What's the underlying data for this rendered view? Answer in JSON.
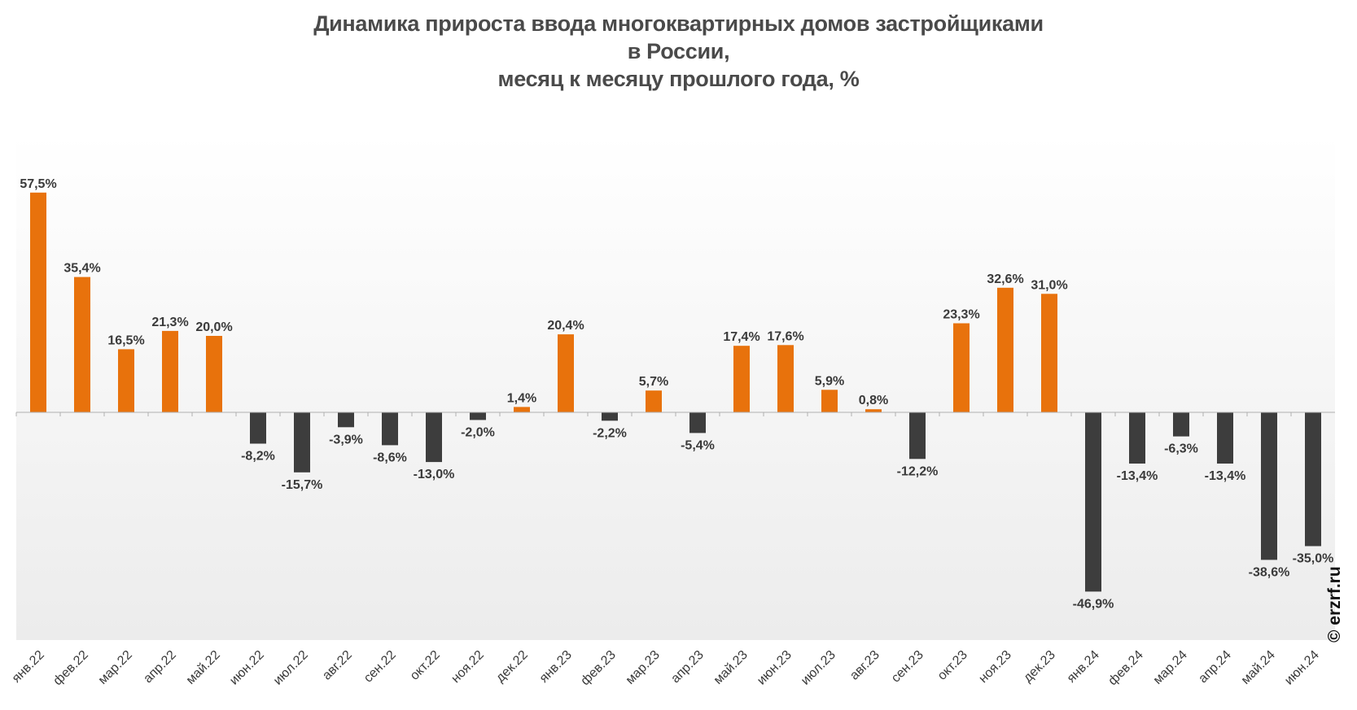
{
  "title_lines": [
    "Динамика прироста ввода многоквартирных домов застройщиками",
    "в России,",
    "месяц к месяцу прошлого года, %"
  ],
  "watermark": "© erzrf.ru",
  "colors": {
    "positive": "#e8720c",
    "negative": "#3d3d3d"
  },
  "chart_data": {
    "type": "bar",
    "title": "Динамика прироста ввода многоквартирных домов застройщиками в России, месяц к месяцу прошлого года, %",
    "xlabel": "",
    "ylabel": "",
    "ylim": [
      -50,
      60
    ],
    "grid": false,
    "legend": "none",
    "categories": [
      "янв.22",
      "фев.22",
      "мар.22",
      "апр.22",
      "май.22",
      "июн.22",
      "июл.22",
      "авг.22",
      "сен.22",
      "окт.22",
      "ноя.22",
      "дек.22",
      "янв.23",
      "фев.23",
      "мар.23",
      "апр.23",
      "май.23",
      "июн.23",
      "июл.23",
      "авг.23",
      "сен.23",
      "окт.23",
      "ноя.23",
      "дек.23",
      "янв.24",
      "фев.24",
      "мар.24",
      "апр.24",
      "май.24",
      "июн.24"
    ],
    "values": [
      57.5,
      35.4,
      16.5,
      21.3,
      20.0,
      -8.2,
      -15.7,
      -3.9,
      -8.6,
      -13.0,
      -2.0,
      1.4,
      20.4,
      -2.2,
      5.7,
      -5.4,
      17.4,
      17.6,
      5.9,
      0.8,
      -12.2,
      23.3,
      32.6,
      31.0,
      -46.9,
      -13.4,
      -6.3,
      -13.4,
      -38.6,
      -35.0
    ],
    "data_labels": [
      "57,5%",
      "35,4%",
      "16,5%",
      "21,3%",
      "20,0%",
      "-8,2%",
      "-15,7%",
      "-3,9%",
      "-8,6%",
      "-13,0%",
      "-2,0%",
      "1,4%",
      "20,4%",
      "-2,2%",
      "5,7%",
      "-5,4%",
      "17,4%",
      "17,6%",
      "5,9%",
      "0,8%",
      "-12,2%",
      "23,3%",
      "32,6%",
      "31,0%",
      "-46,9%",
      "-13,4%",
      "-6,3%",
      "-13,4%",
      "-38,6%",
      "-35,0%"
    ]
  }
}
